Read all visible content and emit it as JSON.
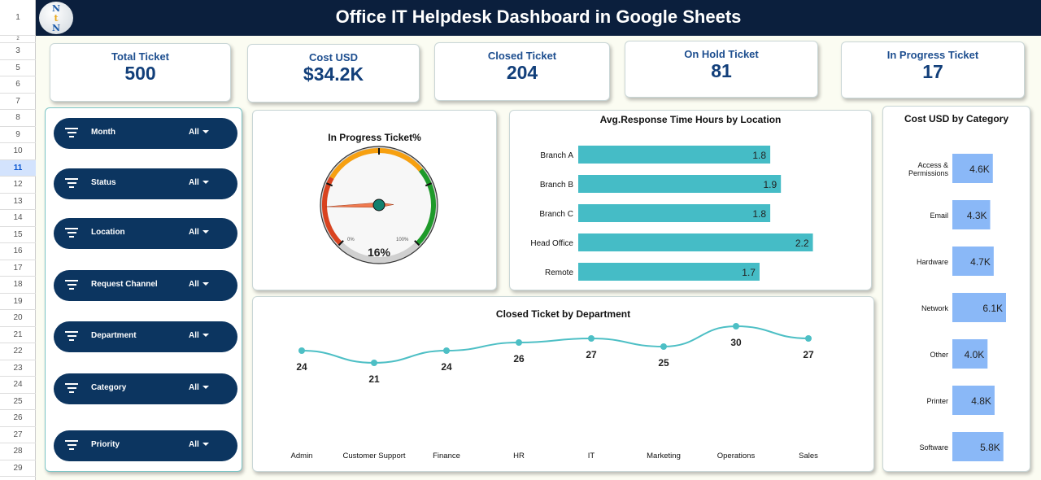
{
  "sheet": {
    "rows": [
      "1",
      "2",
      "3",
      "5",
      "6",
      "7",
      "8",
      "9",
      "10",
      "11",
      "12",
      "13",
      "14",
      "15",
      "16",
      "17",
      "18",
      "19",
      "20",
      "21",
      "22",
      "23",
      "24",
      "25",
      "26",
      "27",
      "28",
      "29"
    ],
    "selected_row": "11"
  },
  "header": {
    "title": "Office IT Helpdesk Dashboard in Google Sheets",
    "logo_text": "NtN"
  },
  "kpis": [
    {
      "label": "Total Ticket",
      "value": "500"
    },
    {
      "label": "Cost USD",
      "value": "$34.2K"
    },
    {
      "label": "Closed Ticket",
      "value": "204"
    },
    {
      "label": "On Hold Ticket",
      "value": "81"
    },
    {
      "label": "In Progress Ticket",
      "value": "17"
    }
  ],
  "filters": [
    {
      "label": "Month",
      "value": "All"
    },
    {
      "label": "Status",
      "value": "All"
    },
    {
      "label": "Location",
      "value": "All"
    },
    {
      "label": "Request Channel",
      "value": "All"
    },
    {
      "label": "Department",
      "value": "All"
    },
    {
      "label": "Category",
      "value": "All"
    },
    {
      "label": "Priority",
      "value": "All"
    }
  ],
  "colors": {
    "navy": "#0b1f3d",
    "bar_teal": "#45bcc6",
    "bar_blue": "#8ab8f7",
    "line": "#4dbfc5"
  },
  "chart_data": [
    {
      "type": "gauge",
      "title": "In Progress Ticket%",
      "value": 16,
      "value_label": "16%",
      "min_label": "0%",
      "max_label": "100%"
    },
    {
      "type": "bar",
      "orientation": "horizontal",
      "title": "Avg.Response Time Hours by Location",
      "categories": [
        "Branch A",
        "Branch B",
        "Branch C",
        "Head Office",
        "Remote"
      ],
      "values": [
        1.8,
        1.9,
        1.8,
        2.2,
        1.7
      ],
      "labels": [
        "1.8",
        "1.9",
        "1.8",
        "2.2",
        "1.7"
      ],
      "xlim": [
        0,
        2.6
      ]
    },
    {
      "type": "line",
      "title": "Closed Ticket by Department",
      "categories": [
        "Admin",
        "Customer Support",
        "Finance",
        "HR",
        "IT",
        "Marketing",
        "Operations",
        "Sales"
      ],
      "values": [
        24,
        21,
        24,
        26,
        27,
        25,
        30,
        27
      ]
    },
    {
      "type": "bar",
      "orientation": "horizontal",
      "title": "Cost USD by Category",
      "categories": [
        "Access & Permissions",
        "Email",
        "Hardware",
        "Network",
        "Other",
        "Printer",
        "Software"
      ],
      "values": [
        4.6,
        4.3,
        4.7,
        6.1,
        4.0,
        4.8,
        5.8
      ],
      "labels": [
        "4.6K",
        "4.3K",
        "4.7K",
        "6.1K",
        "4.0K",
        "4.8K",
        "5.8K"
      ]
    }
  ]
}
